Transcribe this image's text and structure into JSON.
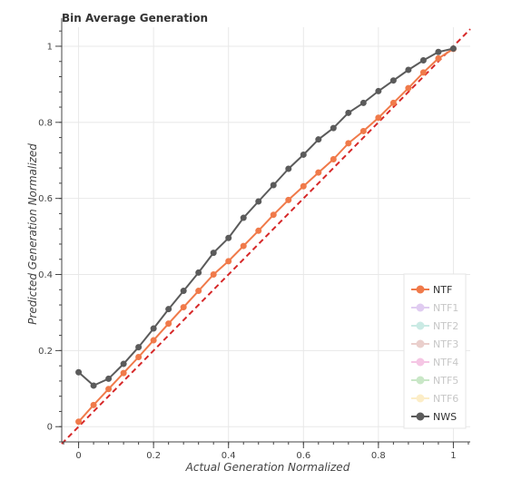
{
  "chart_data": {
    "type": "line",
    "title": "Bin Average Generation",
    "xlabel": "Actual Generation Normalized",
    "ylabel": "Predicted Generation Normalized",
    "xlim": [
      -0.045,
      1.045
    ],
    "ylim": [
      -0.04,
      1.05
    ],
    "x_ticks": [
      0,
      0.2,
      0.4,
      0.6,
      0.8,
      1
    ],
    "y_ticks": [
      0,
      0.2,
      0.4,
      0.6,
      0.8,
      1
    ],
    "x_tick_labels": [
      "0",
      "0.2",
      "0.4",
      "0.6",
      "0.8",
      "1"
    ],
    "y_tick_labels": [
      "0",
      "0.2",
      "0.4",
      "0.6",
      "0.8",
      "1"
    ],
    "grid": true,
    "legend_position": "bottom-right",
    "reference_line": {
      "style": "dashed",
      "color": "#d62728",
      "from": [
        -0.045,
        -0.045
      ],
      "to": [
        1.045,
        1.045
      ]
    },
    "series": [
      {
        "name": "NTF",
        "color": "#f07a4a",
        "visible": true,
        "x": [
          0,
          0.04,
          0.08,
          0.12,
          0.16,
          0.2,
          0.24,
          0.28,
          0.32,
          0.36,
          0.4,
          0.44,
          0.48,
          0.52,
          0.56,
          0.6,
          0.64,
          0.68,
          0.72,
          0.76,
          0.8,
          0.84,
          0.88,
          0.92,
          0.96,
          1.0
        ],
        "y": [
          0.013,
          0.057,
          0.099,
          0.141,
          0.183,
          0.227,
          0.271,
          0.314,
          0.357,
          0.4,
          0.435,
          0.475,
          0.515,
          0.557,
          0.596,
          0.632,
          0.668,
          0.703,
          0.745,
          0.777,
          0.812,
          0.851,
          0.89,
          0.931,
          0.968,
          0.993
        ]
      },
      {
        "name": "NTF1",
        "color": "#c7a3e6",
        "visible": false
      },
      {
        "name": "NTF2",
        "color": "#9fd9cf",
        "visible": false
      },
      {
        "name": "NTF3",
        "color": "#d9a8a3",
        "visible": false
      },
      {
        "name": "NTF4",
        "color": "#ee98cf",
        "visible": false
      },
      {
        "name": "NTF5",
        "color": "#9ed59b",
        "visible": false
      },
      {
        "name": "NTF6",
        "color": "#fbe09a",
        "visible": false
      },
      {
        "name": "NWS",
        "color": "#5b5b5b",
        "visible": true,
        "x": [
          0,
          0.04,
          0.08,
          0.12,
          0.16,
          0.2,
          0.24,
          0.28,
          0.32,
          0.36,
          0.4,
          0.44,
          0.48,
          0.52,
          0.56,
          0.6,
          0.64,
          0.68,
          0.72,
          0.76,
          0.8,
          0.84,
          0.88,
          0.92,
          0.96,
          1.0
        ],
        "y": [
          0.143,
          0.108,
          0.126,
          0.165,
          0.209,
          0.258,
          0.309,
          0.357,
          0.405,
          0.457,
          0.496,
          0.549,
          0.592,
          0.635,
          0.678,
          0.715,
          0.755,
          0.785,
          0.825,
          0.851,
          0.882,
          0.91,
          0.938,
          0.963,
          0.985,
          0.994
        ]
      }
    ]
  }
}
